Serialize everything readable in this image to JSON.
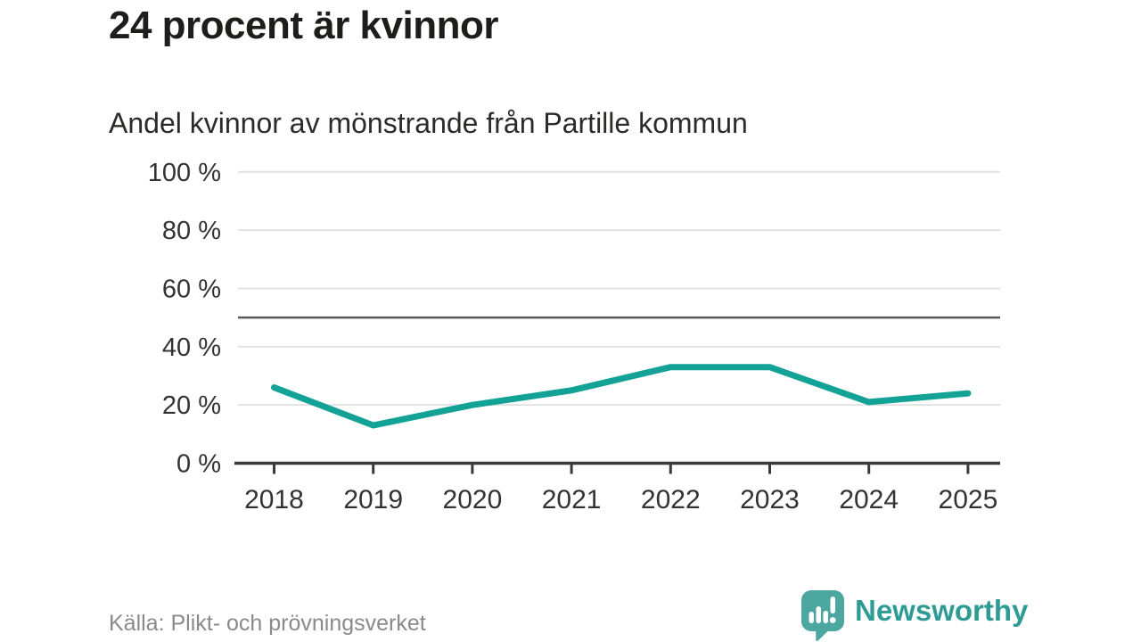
{
  "header": {
    "title": "24 procent är kvinnor",
    "subtitle": "Andel kvinnor av mönstrande från Partille kommun"
  },
  "chart_data": {
    "type": "line",
    "title": "24 procent är kvinnor",
    "subtitle": "Andel kvinnor av mönstrande från Partille kommun",
    "x": [
      2018,
      2019,
      2020,
      2021,
      2022,
      2023,
      2024,
      2025
    ],
    "series": [
      {
        "name": "Andel kvinnor av mönstrande",
        "values": [
          26,
          13,
          20,
          25,
          33,
          33,
          21,
          24
        ]
      }
    ],
    "xlabel": "",
    "ylabel": "",
    "ylim": [
      0,
      100
    ],
    "yticks": [
      {
        "value": 0,
        "label": "0 %"
      },
      {
        "value": 20,
        "label": "20 %"
      },
      {
        "value": 40,
        "label": "40 %"
      },
      {
        "value": 60,
        "label": "60 %"
      },
      {
        "value": 80,
        "label": "80 %"
      },
      {
        "value": 100,
        "label": "100 %"
      }
    ],
    "reference_line": 50,
    "grid": true,
    "legend_position": "none",
    "colors": {
      "line": "#12a296",
      "grid": "#e2e2e2",
      "reference": "#58585a",
      "axis": "#3a3a3a",
      "axis_text": "#333333"
    }
  },
  "footer": {
    "source": "Källa: Plikt- och prövningsverket",
    "brand": "Newsworthy",
    "brand_color": "#2e9c95",
    "logo_bubble_color": "#4ba7a0"
  }
}
